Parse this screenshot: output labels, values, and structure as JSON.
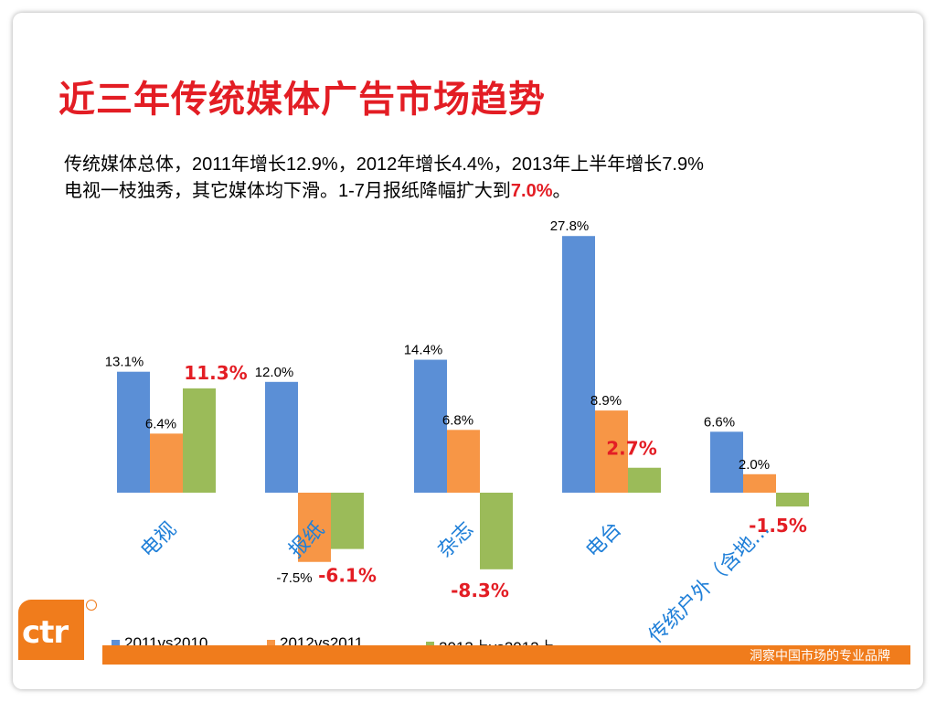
{
  "title": "近三年传统媒体广告市场趋势",
  "subtitle": {
    "line1": "传统媒体总体，2011年增长12.9%，2012年增长4.4%，2013年上半年增长7.9%",
    "line2_prefix": "电视一枝独秀，其它媒体均下滑。1-7月报纸降幅扩大到",
    "line2_highlight": "7.0%",
    "line2_suffix": "。"
  },
  "chart_data": {
    "type": "bar",
    "categories": [
      "电视",
      "报纸",
      "杂志",
      "电台",
      "传统户外（含地…"
    ],
    "series": [
      {
        "name": "2011vs2010",
        "values": [
          13.1,
          12.0,
          14.4,
          27.8,
          6.6
        ],
        "color": "#5b8fd6"
      },
      {
        "name": "2012vs2011",
        "values": [
          6.4,
          -7.5,
          6.8,
          8.9,
          2.0
        ],
        "color": "#f79646"
      },
      {
        "name": "2013上vs2012上",
        "values": [
          11.3,
          -6.1,
          -8.3,
          2.7,
          -1.5
        ],
        "color": "#9bbb59"
      }
    ],
    "data_labels": [
      [
        "13.1%",
        "6.4%",
        "11.3%"
      ],
      [
        "12.0%",
        "-7.5%",
        "-6.1%"
      ],
      [
        "14.4%",
        "6.8%",
        "-8.3%"
      ],
      [
        "27.8%",
        "8.9%",
        "2.7%"
      ],
      [
        "6.6%",
        "2.0%",
        "-1.5%"
      ]
    ],
    "highlight_series": 2,
    "highlight_color": "#e31d24",
    "category_color": "#1f7fd8",
    "legend_position": "bottom",
    "grid": false
  },
  "footer": {
    "tagline": "洞察中国市场的专业品牌",
    "logo_text": "ctr"
  }
}
